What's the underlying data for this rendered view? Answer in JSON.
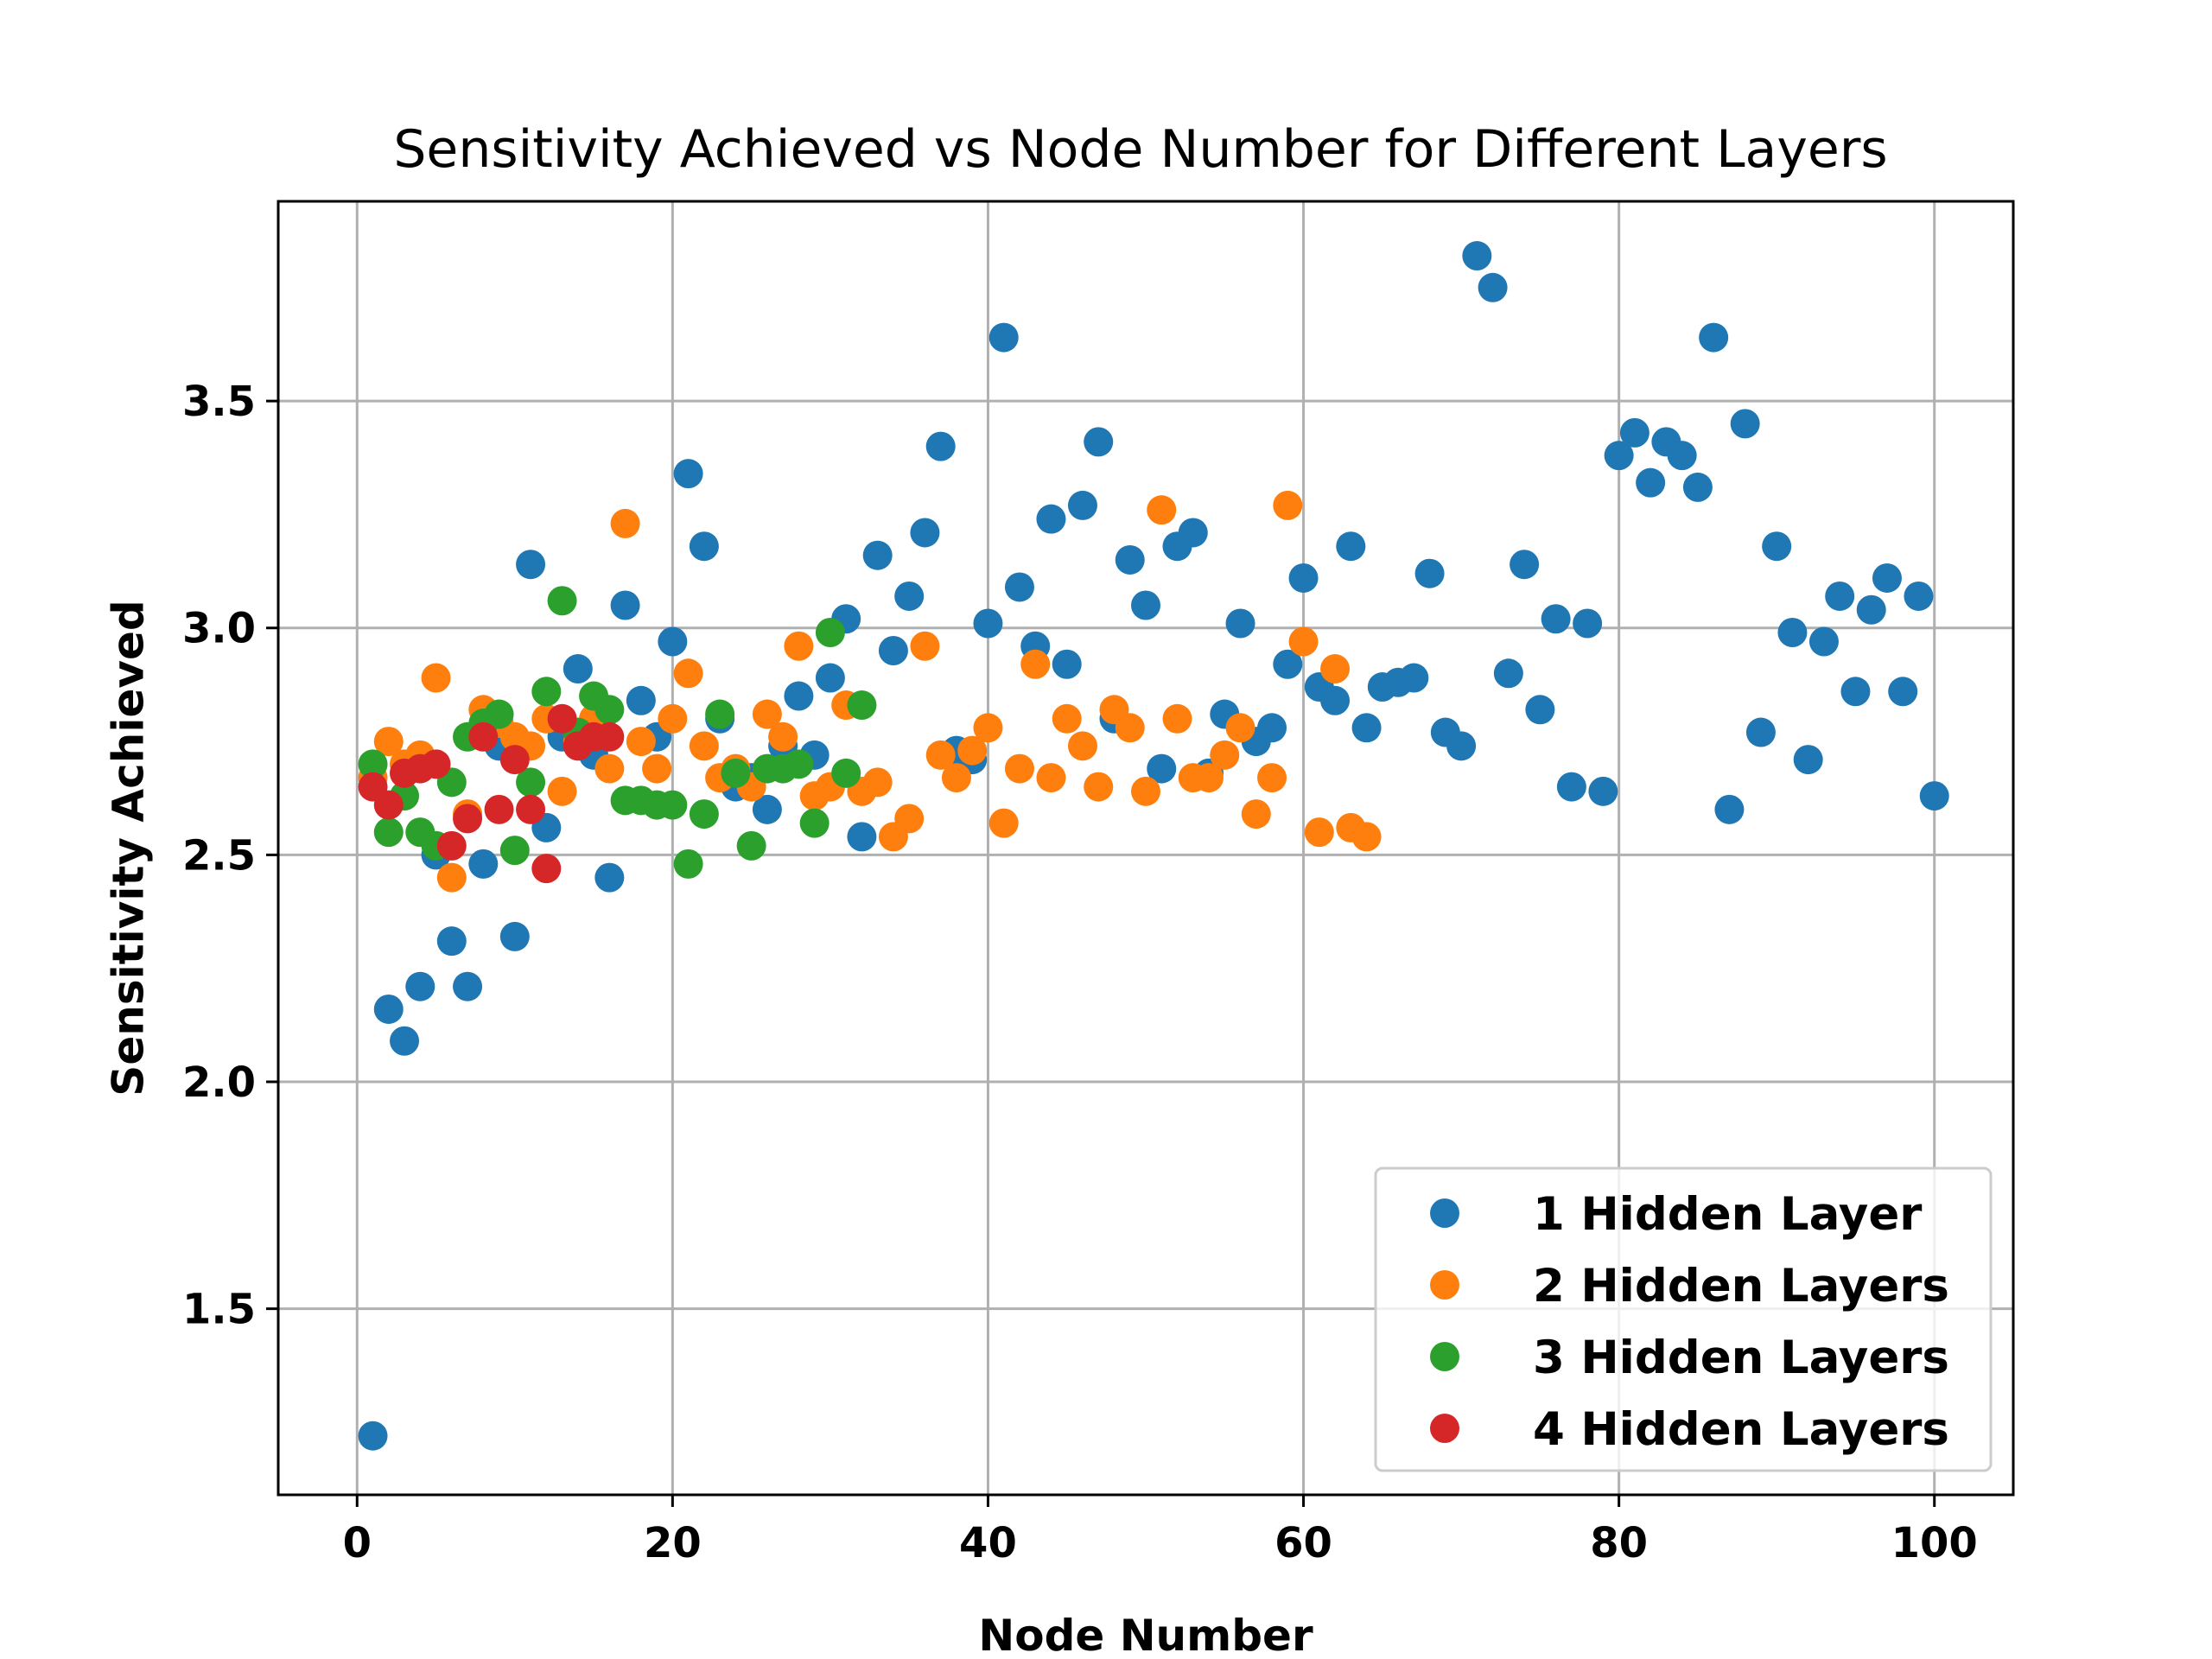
{
  "chart_data": {
    "type": "scatter",
    "title": "Sensitivity Achieved vs Node Number for Different Layers",
    "xlabel": "Node Number",
    "ylabel": "Sensitivity Achieved",
    "xlim": [
      -5,
      105
    ],
    "ylim": [
      1.09,
      3.94
    ],
    "xticks": [
      0,
      20,
      40,
      60,
      80,
      100
    ],
    "xtick_labels": [
      "0",
      "20",
      "40",
      "60",
      "80",
      "100"
    ],
    "yticks": [
      1.5,
      2.0,
      2.5,
      3.0,
      3.5
    ],
    "ytick_labels": [
      "1.5",
      "2.0",
      "2.5",
      "3.0",
      "3.5"
    ],
    "grid": true,
    "legend_position": "lower-right",
    "series": [
      {
        "name": "1 Hidden Layer",
        "color": "#1f77b4",
        "points": [
          [
            1,
            1.22
          ],
          [
            2,
            2.16
          ],
          [
            3,
            2.09
          ],
          [
            4,
            2.21
          ],
          [
            5,
            2.5
          ],
          [
            6,
            2.31
          ],
          [
            7,
            2.21
          ],
          [
            8,
            2.48
          ],
          [
            9,
            2.74
          ],
          [
            10,
            2.32
          ],
          [
            11,
            3.14
          ],
          [
            12,
            2.56
          ],
          [
            13,
            2.76
          ],
          [
            14,
            2.91
          ],
          [
            15,
            2.72
          ],
          [
            16,
            2.45
          ],
          [
            17,
            3.05
          ],
          [
            18,
            2.84
          ],
          [
            19,
            2.76
          ],
          [
            20,
            2.97
          ],
          [
            21,
            3.34
          ],
          [
            22,
            3.18
          ],
          [
            23,
            2.8
          ],
          [
            24,
            2.65
          ],
          [
            25,
            2.67
          ],
          [
            26,
            2.6
          ],
          [
            27,
            2.74
          ],
          [
            28,
            2.85
          ],
          [
            29,
            2.72
          ],
          [
            30,
            2.89
          ],
          [
            31,
            3.02
          ],
          [
            32,
            2.54
          ],
          [
            33,
            3.16
          ],
          [
            34,
            2.95
          ],
          [
            35,
            3.07
          ],
          [
            36,
            3.21
          ],
          [
            37,
            3.4
          ],
          [
            38,
            2.73
          ],
          [
            39,
            2.71
          ],
          [
            40,
            3.01
          ],
          [
            41,
            3.64
          ],
          [
            42,
            3.09
          ],
          [
            43,
            2.96
          ],
          [
            44,
            3.24
          ],
          [
            45,
            2.92
          ],
          [
            46,
            3.27
          ],
          [
            47,
            3.41
          ],
          [
            48,
            2.8
          ],
          [
            49,
            3.15
          ],
          [
            50,
            3.05
          ],
          [
            51,
            2.69
          ],
          [
            52,
            3.18
          ],
          [
            53,
            3.21
          ],
          [
            54,
            2.68
          ],
          [
            55,
            2.81
          ],
          [
            56,
            3.01
          ],
          [
            57,
            2.75
          ],
          [
            58,
            2.78
          ],
          [
            59,
            2.92
          ],
          [
            60,
            3.11
          ],
          [
            61,
            2.87
          ],
          [
            62,
            2.84
          ],
          [
            63,
            3.18
          ],
          [
            64,
            2.78
          ],
          [
            65,
            2.87
          ],
          [
            66,
            2.88
          ],
          [
            67,
            2.89
          ],
          [
            68,
            3.12
          ],
          [
            69,
            2.77
          ],
          [
            70,
            2.74
          ],
          [
            71,
            3.82
          ],
          [
            72,
            3.75
          ],
          [
            73,
            2.9
          ],
          [
            74,
            3.14
          ],
          [
            75,
            2.82
          ],
          [
            76,
            3.02
          ],
          [
            77,
            2.65
          ],
          [
            78,
            3.01
          ],
          [
            79,
            2.64
          ],
          [
            80,
            3.38
          ],
          [
            81,
            3.43
          ],
          [
            82,
            3.32
          ],
          [
            83,
            3.41
          ],
          [
            84,
            3.38
          ],
          [
            85,
            3.31
          ],
          [
            86,
            3.64
          ],
          [
            87,
            2.6
          ],
          [
            88,
            3.45
          ],
          [
            89,
            2.77
          ],
          [
            90,
            3.18
          ],
          [
            91,
            2.99
          ],
          [
            92,
            2.71
          ],
          [
            93,
            2.97
          ],
          [
            94,
            3.07
          ],
          [
            95,
            2.86
          ],
          [
            96,
            3.04
          ],
          [
            97,
            3.11
          ],
          [
            98,
            2.86
          ],
          [
            99,
            3.07
          ],
          [
            100,
            2.63
          ]
        ]
      },
      {
        "name": "2 Hidden Layers",
        "color": "#ff7f0e",
        "points": [
          [
            1,
            2.67
          ],
          [
            2,
            2.75
          ],
          [
            3,
            2.7
          ],
          [
            4,
            2.72
          ],
          [
            5,
            2.89
          ],
          [
            6,
            2.45
          ],
          [
            7,
            2.59
          ],
          [
            8,
            2.82
          ],
          [
            9,
            2.79
          ],
          [
            10,
            2.76
          ],
          [
            11,
            2.74
          ],
          [
            12,
            2.8
          ],
          [
            13,
            2.64
          ],
          [
            14,
            2.75
          ],
          [
            15,
            2.8
          ],
          [
            16,
            2.69
          ],
          [
            17,
            3.23
          ],
          [
            18,
            2.75
          ],
          [
            19,
            2.69
          ],
          [
            20,
            2.8
          ],
          [
            21,
            2.9
          ],
          [
            22,
            2.74
          ],
          [
            23,
            2.67
          ],
          [
            24,
            2.69
          ],
          [
            25,
            2.65
          ],
          [
            26,
            2.81
          ],
          [
            27,
            2.76
          ],
          [
            28,
            2.96
          ],
          [
            29,
            2.63
          ],
          [
            30,
            2.65
          ],
          [
            31,
            2.83
          ],
          [
            32,
            2.64
          ],
          [
            33,
            2.66
          ],
          [
            34,
            2.54
          ],
          [
            35,
            2.58
          ],
          [
            36,
            2.96
          ],
          [
            37,
            2.72
          ],
          [
            38,
            2.67
          ],
          [
            39,
            2.73
          ],
          [
            40,
            2.78
          ],
          [
            41,
            2.57
          ],
          [
            42,
            2.69
          ],
          [
            43,
            2.92
          ],
          [
            44,
            2.67
          ],
          [
            45,
            2.8
          ],
          [
            46,
            2.74
          ],
          [
            47,
            2.65
          ],
          [
            48,
            2.82
          ],
          [
            49,
            2.78
          ],
          [
            50,
            2.64
          ],
          [
            51,
            3.26
          ],
          [
            52,
            2.8
          ],
          [
            53,
            2.67
          ],
          [
            54,
            2.67
          ],
          [
            55,
            2.72
          ],
          [
            56,
            2.78
          ],
          [
            57,
            2.59
          ],
          [
            58,
            2.67
          ],
          [
            59,
            3.27
          ],
          [
            60,
            2.97
          ],
          [
            61,
            2.55
          ],
          [
            62,
            2.91
          ],
          [
            63,
            2.56
          ],
          [
            64,
            2.54
          ]
        ]
      },
      {
        "name": "3 Hidden Layers",
        "color": "#2ca02c",
        "points": [
          [
            1,
            2.7
          ],
          [
            2,
            2.55
          ],
          [
            3,
            2.63
          ],
          [
            4,
            2.55
          ],
          [
            5,
            2.52
          ],
          [
            6,
            2.66
          ],
          [
            7,
            2.76
          ],
          [
            8,
            2.79
          ],
          [
            9,
            2.81
          ],
          [
            10,
            2.51
          ],
          [
            11,
            2.66
          ],
          [
            12,
            2.86
          ],
          [
            13,
            3.06
          ],
          [
            14,
            2.77
          ],
          [
            15,
            2.85
          ],
          [
            16,
            2.82
          ],
          [
            17,
            2.62
          ],
          [
            18,
            2.62
          ],
          [
            19,
            2.61
          ],
          [
            20,
            2.61
          ],
          [
            21,
            2.48
          ],
          [
            22,
            2.59
          ],
          [
            23,
            2.81
          ],
          [
            24,
            2.68
          ],
          [
            25,
            2.52
          ],
          [
            26,
            2.69
          ],
          [
            27,
            2.69
          ],
          [
            28,
            2.7
          ],
          [
            29,
            2.57
          ],
          [
            30,
            2.99
          ],
          [
            31,
            2.68
          ],
          [
            32,
            2.83
          ]
        ]
      },
      {
        "name": "4 Hidden Layers",
        "color": "#d62728",
        "points": [
          [
            1,
            2.65
          ],
          [
            2,
            2.61
          ],
          [
            3,
            2.68
          ],
          [
            4,
            2.69
          ],
          [
            5,
            2.7
          ],
          [
            6,
            2.52
          ],
          [
            7,
            2.58
          ],
          [
            8,
            2.76
          ],
          [
            9,
            2.6
          ],
          [
            10,
            2.71
          ],
          [
            11,
            2.6
          ],
          [
            12,
            2.47
          ],
          [
            13,
            2.8
          ],
          [
            14,
            2.74
          ],
          [
            15,
            2.76
          ],
          [
            16,
            2.76
          ]
        ]
      }
    ]
  }
}
